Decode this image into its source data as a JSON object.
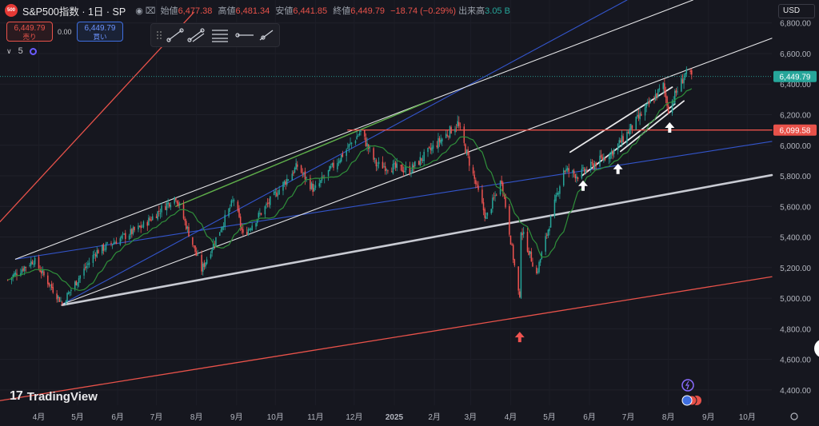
{
  "header": {
    "logo_text": "500",
    "title": "S&P500指数 · 1日 · SP",
    "open_label": "始値",
    "open": "6,477.38",
    "high_label": "高値",
    "high": "6,481.34",
    "low_label": "安値",
    "low": "6,441.85",
    "close_label": "終値",
    "close": "6,449.79",
    "change": "−18.74 (−0.29%)",
    "volume_label": "出来高",
    "volume": "3.05 B"
  },
  "trade": {
    "sell_price": "6,449.79",
    "sell_label": "売り",
    "spread": "0.00",
    "buy_price": "6,449.79",
    "buy_label": "買い"
  },
  "indicator": {
    "count": "5"
  },
  "currency": "USD",
  "brand": "TradingView",
  "colors": {
    "up": "#26a69a",
    "down": "#ef5350",
    "ma": "#2f8f3a",
    "resistance": "#e8524a",
    "blue_line": "#3355cc",
    "channel": "#e8e8ea"
  },
  "chart_data": {
    "type": "candlestick",
    "ylim": [
      4300,
      6950
    ],
    "y_ticks": [
      "6,800.00",
      "6,600.00",
      "6,400.00",
      "6,200.00",
      "6,000.00",
      "5,800.00",
      "5,600.00",
      "5,400.00",
      "5,200.00",
      "5,000.00",
      "4,800.00",
      "4,600.00",
      "4,400.00"
    ],
    "y_tick_values": [
      6800,
      6600,
      6400,
      6200,
      6000,
      5800,
      5600,
      5400,
      5200,
      5000,
      4800,
      4600,
      4400
    ],
    "x_labels": [
      "4月",
      "5月",
      "6月",
      "7月",
      "8月",
      "9月",
      "10月",
      "11月",
      "12月",
      "2025",
      "2月",
      "3月",
      "4月",
      "5月",
      "6月",
      "7月",
      "8月",
      "9月",
      "10月"
    ],
    "x_label_dates": [
      "2024-04-01",
      "2024-05-01",
      "2024-06-01",
      "2024-07-01",
      "2024-08-01",
      "2024-09-01",
      "2024-10-01",
      "2024-11-01",
      "2024-12-01",
      "2025-01-01",
      "2025-02-01",
      "2025-03-01",
      "2025-04-01",
      "2025-05-01",
      "2025-06-01",
      "2025-07-01",
      "2025-08-01",
      "2025-09-01",
      "2025-10-01"
    ],
    "last_price": "6,449.79",
    "last_price_value": 6449.79,
    "resistance_label": "6,099.58",
    "resistance_value": 6099.58,
    "key_points": [
      {
        "date": "2024-03-08",
        "close": 5120
      },
      {
        "date": "2024-03-28",
        "close": 5250
      },
      {
        "date": "2024-04-19",
        "close": 4967
      },
      {
        "date": "2024-05-15",
        "close": 5300
      },
      {
        "date": "2024-06-20",
        "close": 5470
      },
      {
        "date": "2024-07-16",
        "close": 5667
      },
      {
        "date": "2024-08-05",
        "close": 5186
      },
      {
        "date": "2024-08-30",
        "close": 5648
      },
      {
        "date": "2024-09-06",
        "close": 5408
      },
      {
        "date": "2024-10-18",
        "close": 5864
      },
      {
        "date": "2024-10-31",
        "close": 5705
      },
      {
        "date": "2024-12-06",
        "close": 6090
      },
      {
        "date": "2024-12-18",
        "close": 5872
      },
      {
        "date": "2025-01-13",
        "close": 5836
      },
      {
        "date": "2025-02-19",
        "close": 6144
      },
      {
        "date": "2025-03-13",
        "close": 5521
      },
      {
        "date": "2025-03-25",
        "close": 5776
      },
      {
        "date": "2025-04-08",
        "close": 4982
      },
      {
        "date": "2025-04-09",
        "close": 5456
      },
      {
        "date": "2025-04-21",
        "close": 5158
      },
      {
        "date": "2025-05-12",
        "close": 5844
      },
      {
        "date": "2025-05-23",
        "close": 5802
      },
      {
        "date": "2025-06-20",
        "close": 5967
      },
      {
        "date": "2025-07-28",
        "close": 6389
      },
      {
        "date": "2025-08-01",
        "close": 6238
      },
      {
        "date": "2025-08-14",
        "close": 6468
      },
      {
        "date": "2025-08-19",
        "close": 6449.79
      }
    ],
    "annotations": [
      "white channel lines",
      "red support/resistance lines",
      "blue trend lines",
      "horizontal resistance 6,099.58",
      "arrows at pullback lows"
    ]
  }
}
